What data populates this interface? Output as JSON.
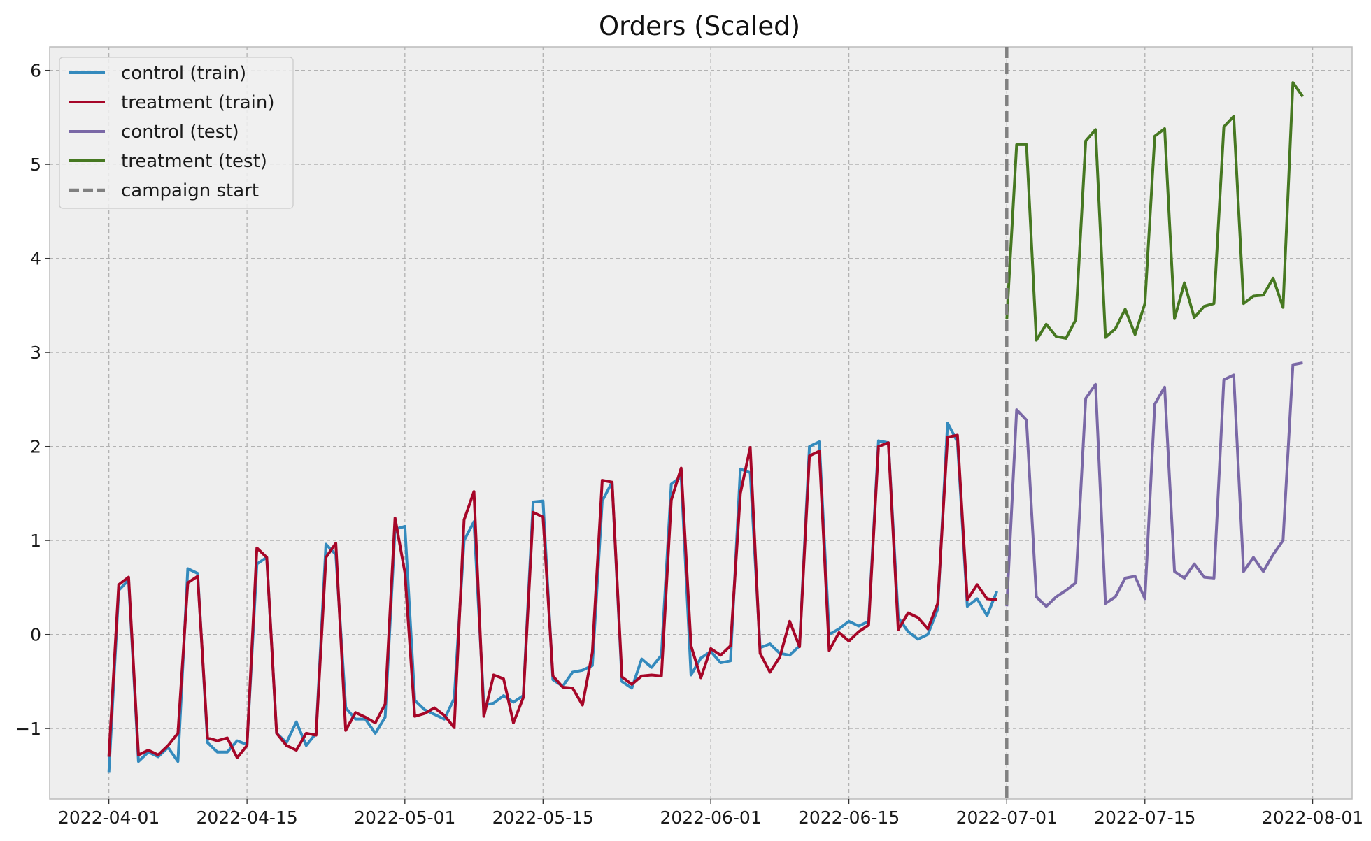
{
  "chart_data": {
    "type": "line",
    "title": "Orders (Scaled)",
    "xlabel": "",
    "ylabel": "",
    "x_axis": "date",
    "xlim": [
      "2022-03-26",
      "2022-08-05"
    ],
    "ylim": [
      -1.75,
      6.25
    ],
    "x_ticks": [
      "2022-04-01",
      "2022-04-15",
      "2022-05-01",
      "2022-05-15",
      "2022-06-01",
      "2022-06-15",
      "2022-07-01",
      "2022-07-15",
      "2022-08-01"
    ],
    "y_ticks": [
      -1,
      0,
      1,
      2,
      3,
      4,
      5,
      6
    ],
    "y_tick_labels": [
      "−1",
      "0",
      "1",
      "2",
      "3",
      "4",
      "5",
      "6"
    ],
    "grid": true,
    "legend_position": "top-left",
    "background": "#eeeeee",
    "series": [
      {
        "name": "control (train)",
        "color": "#348abd",
        "start_date": "2022-04-01",
        "values": [
          -1.47,
          0.47,
          0.58,
          -1.35,
          -1.25,
          -1.3,
          -1.2,
          -1.35,
          0.7,
          0.65,
          -1.15,
          -1.25,
          -1.25,
          -1.13,
          -1.17,
          0.75,
          0.82,
          -1.05,
          -1.15,
          -0.93,
          -1.18,
          -1.05,
          0.96,
          0.85,
          -0.78,
          -0.9,
          -0.9,
          -1.05,
          -0.88,
          1.12,
          1.15,
          -0.7,
          -0.8,
          -0.85,
          -0.9,
          -0.68,
          1.0,
          1.2,
          -0.75,
          -0.73,
          -0.65,
          -0.72,
          -0.65,
          1.41,
          1.42,
          -0.48,
          -0.55,
          -0.4,
          -0.38,
          -0.33,
          1.42,
          1.62,
          -0.5,
          -0.57,
          -0.26,
          -0.35,
          -0.22,
          1.6,
          1.68,
          -0.43,
          -0.25,
          -0.18,
          -0.3,
          -0.28,
          1.76,
          1.72,
          -0.14,
          -0.1,
          -0.2,
          -0.22,
          -0.12,
          2.0,
          2.05,
          0.0,
          0.06,
          0.14,
          0.09,
          0.14,
          2.06,
          2.04,
          0.18,
          0.03,
          -0.05,
          0.0,
          0.27,
          2.25,
          2.05,
          0.3,
          0.38,
          0.2,
          0.46
        ]
      },
      {
        "name": "treatment (train)",
        "color": "#a60628",
        "start_date": "2022-04-01",
        "values": [
          -1.3,
          0.53,
          0.61,
          -1.28,
          -1.23,
          -1.28,
          -1.18,
          -1.05,
          0.55,
          0.62,
          -1.1,
          -1.13,
          -1.1,
          -1.31,
          -1.18,
          0.92,
          0.82,
          -1.05,
          -1.18,
          -1.23,
          -1.05,
          -1.07,
          0.82,
          0.97,
          -1.02,
          -0.83,
          -0.88,
          -0.94,
          -0.74,
          1.24,
          0.66,
          -0.87,
          -0.84,
          -0.78,
          -0.86,
          -0.99,
          1.22,
          1.52,
          -0.87,
          -0.43,
          -0.47,
          -0.94,
          -0.67,
          1.3,
          1.25,
          -0.44,
          -0.56,
          -0.57,
          -0.75,
          -0.19,
          1.64,
          1.62,
          -0.45,
          -0.53,
          -0.44,
          -0.43,
          -0.44,
          1.43,
          1.77,
          -0.12,
          -0.46,
          -0.15,
          -0.22,
          -0.12,
          1.5,
          1.99,
          -0.2,
          -0.4,
          -0.24,
          0.14,
          -0.13,
          1.9,
          1.95,
          -0.17,
          0.02,
          -0.07,
          0.03,
          0.1,
          2.0,
          2.04,
          0.05,
          0.23,
          0.18,
          0.06,
          0.33,
          2.1,
          2.12,
          0.37,
          0.53,
          0.38,
          0.37
        ]
      },
      {
        "name": "control (test)",
        "color": "#7a68a6",
        "start_date": "2022-07-01",
        "values": [
          0.3,
          2.39,
          2.28,
          0.4,
          0.3,
          0.4,
          0.47,
          0.55,
          2.51,
          2.66,
          0.33,
          0.4,
          0.6,
          0.62,
          0.38,
          2.45,
          2.63,
          0.67,
          0.6,
          0.75,
          0.61,
          0.6,
          2.71,
          2.76,
          0.67,
          0.82,
          0.67,
          0.85,
          1.0,
          2.87,
          2.89
        ]
      },
      {
        "name": "treatment (test)",
        "color": "#467821",
        "start_date": "2022-07-01",
        "values": [
          3.35,
          5.21,
          5.21,
          3.13,
          3.3,
          3.17,
          3.15,
          3.35,
          5.25,
          5.37,
          3.16,
          3.25,
          3.46,
          3.19,
          3.52,
          5.3,
          5.38,
          3.36,
          3.74,
          3.37,
          3.49,
          3.52,
          5.4,
          5.51,
          3.52,
          3.6,
          3.61,
          3.79,
          3.48,
          5.87,
          5.72
        ]
      }
    ],
    "vertical_line": {
      "name": "campaign start",
      "date": "2022-07-01",
      "color": "#808080",
      "style": "dashed"
    }
  },
  "legend": {
    "items": [
      {
        "label": "control (train)",
        "color": "#348abd",
        "style": "solid"
      },
      {
        "label": "treatment (train)",
        "color": "#a60628",
        "style": "solid"
      },
      {
        "label": "control (test)",
        "color": "#7a68a6",
        "style": "solid"
      },
      {
        "label": "treatment (test)",
        "color": "#467821",
        "style": "solid"
      },
      {
        "label": "campaign start",
        "color": "#808080",
        "style": "dashed"
      }
    ]
  }
}
